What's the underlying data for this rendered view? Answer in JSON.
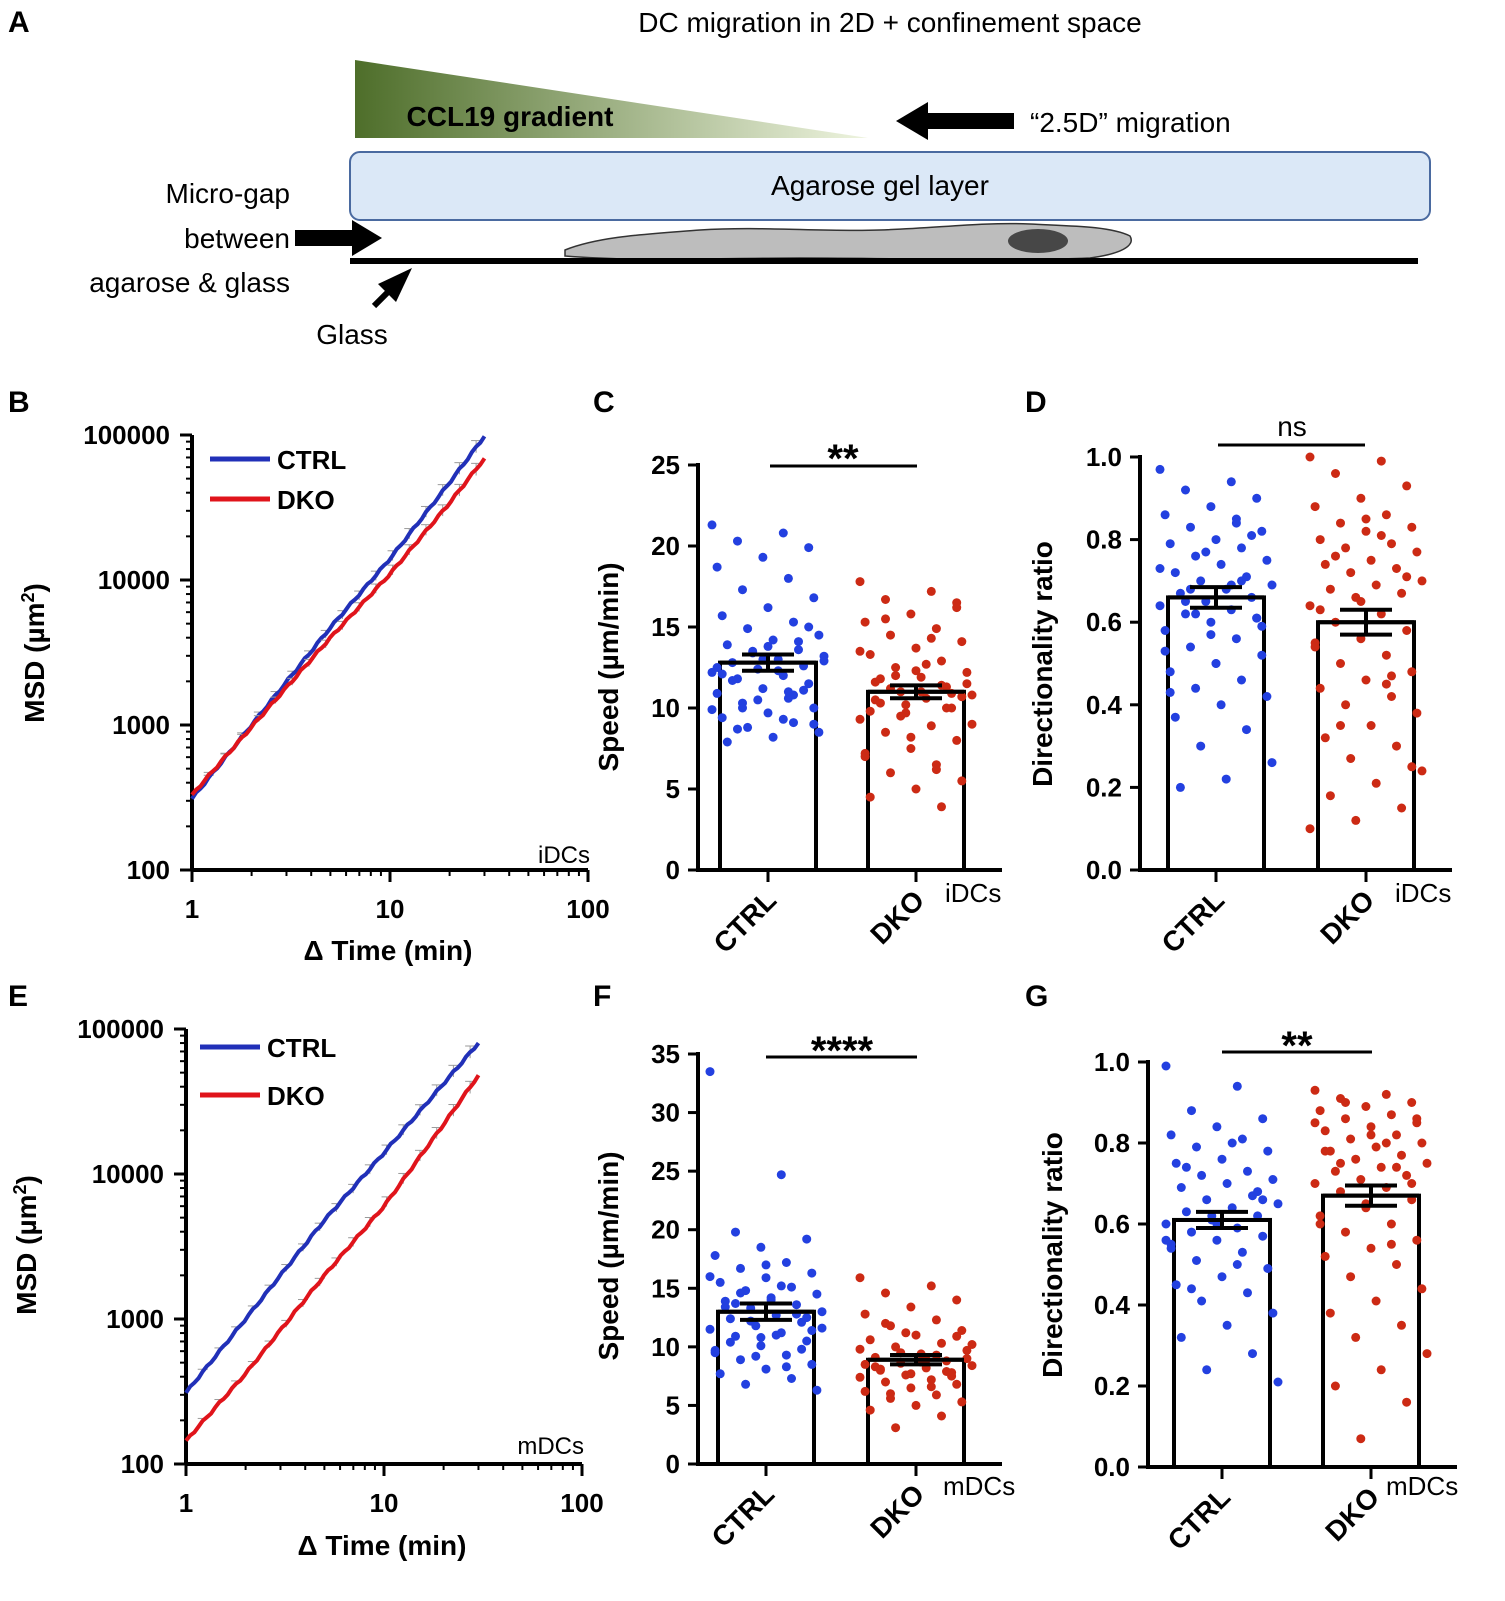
{
  "panel_a": {
    "letter": "A",
    "title": "DC migration in 2D + confinement space",
    "gradient_label": "CCL19 gradient",
    "migration_label": "“2.5D” migration",
    "gel_label": "Agarose gel layer",
    "gap_label_lines": [
      "Micro-gap",
      "between",
      "agarose & glass"
    ],
    "glass_label": "Glass",
    "colors": {
      "gradient_dark": "#4e6e2a",
      "gradient_light": "#eef4df",
      "gel_fill": "#dbe8f7",
      "gel_border": "#4a6aa0",
      "cell_fill": "#bdbdbd",
      "nucleus_fill": "#474747"
    }
  },
  "chart_data": [
    {
      "panel": "B",
      "type": "line",
      "log_scale": true,
      "cell_type": "iDCs",
      "xlabel": "Δ Time (min)",
      "ylabel_main": "MSD (µm",
      "ylabel_sup": "2",
      "ylabel_end": ")",
      "xlim": [
        1,
        100
      ],
      "ylim": [
        100,
        100000
      ],
      "x_ticks": [
        "1",
        "10",
        "100"
      ],
      "y_ticks": [
        "100",
        "1000",
        "10000",
        "100000"
      ],
      "series": [
        {
          "name": "CTRL",
          "color": "#2130b8",
          "x": [
            1,
            2,
            5,
            10,
            20,
            30
          ],
          "y": [
            310,
            1000,
            4700,
            14000,
            47000,
            98000
          ]
        },
        {
          "name": "DKO",
          "color": "#e0141b",
          "x": [
            1,
            2,
            5,
            10,
            20,
            30
          ],
          "y": [
            330,
            970,
            4000,
            11000,
            34000,
            69000
          ]
        }
      ]
    },
    {
      "panel": "C",
      "type": "bar",
      "cell_type": "iDCs",
      "ylabel": "Speed (µm/min)",
      "ylim": [
        0,
        25
      ],
      "y_ticks": [
        0,
        5,
        10,
        15,
        20,
        25
      ],
      "categories": [
        "CTRL",
        "DKO"
      ],
      "values": [
        12.8,
        11.0
      ],
      "sem": [
        0.5,
        0.4
      ],
      "significance": "**",
      "dot_colors": [
        "#2340e0",
        "#cc2a14"
      ],
      "points": [
        [
          21.3,
          20.8,
          20.3,
          19.9,
          19.3,
          18.7,
          18.0,
          17.3,
          16.8,
          16.2,
          15.7,
          15.3,
          14.9,
          14.5,
          14.2,
          13.9,
          13.6,
          13.4,
          13.2,
          13.0,
          12.8,
          12.6,
          12.4,
          12.2,
          12.0,
          11.8,
          11.5,
          11.2,
          10.9,
          10.6,
          10.3,
          10.0,
          9.7,
          9.4,
          9.1,
          8.8,
          8.5,
          8.2,
          7.9,
          14.1,
          13.5,
          12.9,
          12.3,
          11.7,
          11.1,
          10.5,
          9.9,
          9.3,
          8.7,
          15.0,
          13.0,
          12.5,
          11.0,
          10.0,
          9.0,
          13.8,
          12.1,
          10.8
        ],
        [
          17.8,
          17.2,
          16.7,
          16.2,
          15.8,
          15.3,
          14.9,
          14.5,
          14.1,
          13.7,
          13.3,
          12.9,
          12.5,
          12.2,
          11.9,
          11.6,
          11.3,
          11.0,
          10.8,
          10.6,
          10.3,
          10.0,
          9.7,
          9.3,
          8.9,
          8.5,
          8.0,
          7.5,
          7.0,
          6.5,
          6.0,
          5.5,
          5.0,
          4.5,
          3.9,
          12.0,
          11.5,
          11.0,
          10.5,
          10.0,
          9.5,
          9.0,
          12.7,
          11.8,
          10.9,
          10.2,
          13.5,
          14.3,
          15.5,
          16.5,
          8.2,
          7.2,
          6.2,
          11.2,
          10.7,
          12.3,
          9.8,
          11.4
        ]
      ]
    },
    {
      "panel": "D",
      "type": "bar",
      "cell_type": "iDCs",
      "ylabel": "Directionality ratio",
      "ylim": [
        0,
        1.0
      ],
      "y_ticks": [
        "0.0",
        "0.2",
        "0.4",
        "0.6",
        "0.8",
        "1.0"
      ],
      "categories": [
        "CTRL",
        "DKO"
      ],
      "values": [
        0.66,
        0.6
      ],
      "sem": [
        0.025,
        0.03
      ],
      "significance": "ns",
      "dot_colors": [
        "#2340e0",
        "#cc2a14"
      ],
      "points": [
        [
          0.97,
          0.94,
          0.92,
          0.9,
          0.88,
          0.86,
          0.85,
          0.83,
          0.82,
          0.8,
          0.79,
          0.78,
          0.76,
          0.75,
          0.74,
          0.72,
          0.71,
          0.7,
          0.69,
          0.68,
          0.67,
          0.66,
          0.65,
          0.64,
          0.63,
          0.62,
          0.61,
          0.6,
          0.58,
          0.56,
          0.54,
          0.52,
          0.5,
          0.48,
          0.46,
          0.44,
          0.42,
          0.4,
          0.37,
          0.34,
          0.3,
          0.26,
          0.22,
          0.2,
          0.81,
          0.77,
          0.73,
          0.69,
          0.65,
          0.61,
          0.57,
          0.53,
          0.84,
          0.68,
          0.59,
          0.5,
          0.43,
          0.7,
          0.62
        ],
        [
          1.0,
          0.99,
          0.96,
          0.93,
          0.9,
          0.88,
          0.86,
          0.84,
          0.83,
          0.82,
          0.8,
          0.79,
          0.78,
          0.77,
          0.75,
          0.74,
          0.73,
          0.72,
          0.7,
          0.69,
          0.68,
          0.67,
          0.66,
          0.64,
          0.62,
          0.6,
          0.58,
          0.56,
          0.54,
          0.52,
          0.5,
          0.48,
          0.46,
          0.44,
          0.42,
          0.4,
          0.38,
          0.35,
          0.32,
          0.3,
          0.27,
          0.24,
          0.21,
          0.18,
          0.15,
          0.12,
          0.1,
          0.81,
          0.76,
          0.71,
          0.65,
          0.55,
          0.45,
          0.35,
          0.25,
          0.85,
          0.63,
          0.47
        ]
      ]
    },
    {
      "panel": "E",
      "type": "line",
      "log_scale": true,
      "cell_type": "mDCs",
      "xlabel": "Δ Time (min)",
      "ylabel_main": "MSD (µm",
      "ylabel_sup": "2",
      "ylabel_end": ")",
      "xlim": [
        1,
        100
      ],
      "ylim": [
        100,
        100000
      ],
      "x_ticks": [
        "1",
        "10",
        "100"
      ],
      "y_ticks": [
        "100",
        "1000",
        "10000",
        "100000"
      ],
      "series": [
        {
          "name": "CTRL",
          "color": "#2130b8",
          "x": [
            1,
            2,
            5,
            10,
            20,
            30
          ],
          "y": [
            310,
            1000,
            4800,
            14000,
            42000,
            80000
          ]
        },
        {
          "name": "DKO",
          "color": "#e0141b",
          "x": [
            1,
            2,
            5,
            10,
            20,
            30
          ],
          "y": [
            145,
            420,
            2000,
            6000,
            22000,
            48000
          ]
        }
      ]
    },
    {
      "panel": "F",
      "type": "bar",
      "cell_type": "mDCs",
      "ylabel": "Speed (µm/min)",
      "ylim": [
        0,
        35
      ],
      "y_ticks": [
        0,
        5,
        10,
        15,
        20,
        25,
        30,
        35
      ],
      "categories": [
        "CTRL",
        "DKO"
      ],
      "values": [
        13.0,
        8.9
      ],
      "sem": [
        0.7,
        0.4
      ],
      "significance": "****",
      "dot_colors": [
        "#2340e0",
        "#cc2a14"
      ],
      "points": [
        [
          33.5,
          24.7,
          19.8,
          19.2,
          18.5,
          17.8,
          17.2,
          16.7,
          16.3,
          15.9,
          15.5,
          15.1,
          14.8,
          14.5,
          14.2,
          13.9,
          13.6,
          13.3,
          13.0,
          12.7,
          12.4,
          12.1,
          11.8,
          11.5,
          11.2,
          10.9,
          10.5,
          10.1,
          9.7,
          9.3,
          8.9,
          8.5,
          8.1,
          7.7,
          7.3,
          6.8,
          6.3,
          14.0,
          13.4,
          12.8,
          12.2,
          11.6,
          11.0,
          10.4,
          9.8,
          9.2,
          16.0,
          15.2,
          13.7,
          12.5,
          10.8,
          9.5,
          8.3,
          14.6,
          11.4,
          17.0
        ],
        [
          15.9,
          15.2,
          14.6,
          14.0,
          13.4,
          12.8,
          12.3,
          11.8,
          11.4,
          11.0,
          10.6,
          10.3,
          10.0,
          9.7,
          9.4,
          9.1,
          8.8,
          8.6,
          8.4,
          8.2,
          8.0,
          7.8,
          7.6,
          7.4,
          7.2,
          7.0,
          6.8,
          6.5,
          6.2,
          5.9,
          5.6,
          5.3,
          5.0,
          4.6,
          4.1,
          3.1,
          9.0,
          8.7,
          8.3,
          7.9,
          9.5,
          10.2,
          8.9,
          8.1,
          7.5,
          11.2,
          9.8,
          6.6,
          12.0,
          10.9,
          7.7,
          8.5,
          9.3,
          6.0
        ]
      ]
    },
    {
      "panel": "G",
      "type": "bar",
      "cell_type": "mDCs",
      "ylabel": "Directionality ratio",
      "ylim": [
        0,
        1.0
      ],
      "y_ticks": [
        "0.0",
        "0.2",
        "0.4",
        "0.6",
        "0.8",
        "1.0"
      ],
      "categories": [
        "CTRL",
        "DKO"
      ],
      "values": [
        0.61,
        0.67
      ],
      "sem": [
        0.02,
        0.025
      ],
      "significance": "**",
      "dot_colors": [
        "#2340e0",
        "#cc2a14"
      ],
      "points": [
        [
          0.99,
          0.94,
          0.88,
          0.86,
          0.84,
          0.82,
          0.81,
          0.79,
          0.78,
          0.76,
          0.75,
          0.73,
          0.72,
          0.71,
          0.7,
          0.69,
          0.67,
          0.66,
          0.65,
          0.64,
          0.63,
          0.62,
          0.61,
          0.6,
          0.59,
          0.58,
          0.57,
          0.56,
          0.55,
          0.53,
          0.51,
          0.49,
          0.47,
          0.45,
          0.43,
          0.41,
          0.38,
          0.35,
          0.32,
          0.28,
          0.24,
          0.21,
          0.8,
          0.74,
          0.68,
          0.62,
          0.56,
          0.5,
          0.44,
          0.66,
          0.6,
          0.54
        ],
        [
          0.93,
          0.92,
          0.91,
          0.9,
          0.89,
          0.88,
          0.87,
          0.86,
          0.85,
          0.84,
          0.83,
          0.82,
          0.81,
          0.8,
          0.79,
          0.78,
          0.77,
          0.76,
          0.75,
          0.74,
          0.73,
          0.72,
          0.71,
          0.7,
          0.69,
          0.68,
          0.66,
          0.64,
          0.62,
          0.6,
          0.58,
          0.56,
          0.54,
          0.52,
          0.5,
          0.47,
          0.44,
          0.41,
          0.38,
          0.35,
          0.32,
          0.28,
          0.24,
          0.2,
          0.16,
          0.07,
          0.85,
          0.8,
          0.75,
          0.7,
          0.65,
          0.6,
          0.55,
          0.9,
          0.86,
          0.82,
          0.78,
          0.74
        ]
      ]
    }
  ]
}
